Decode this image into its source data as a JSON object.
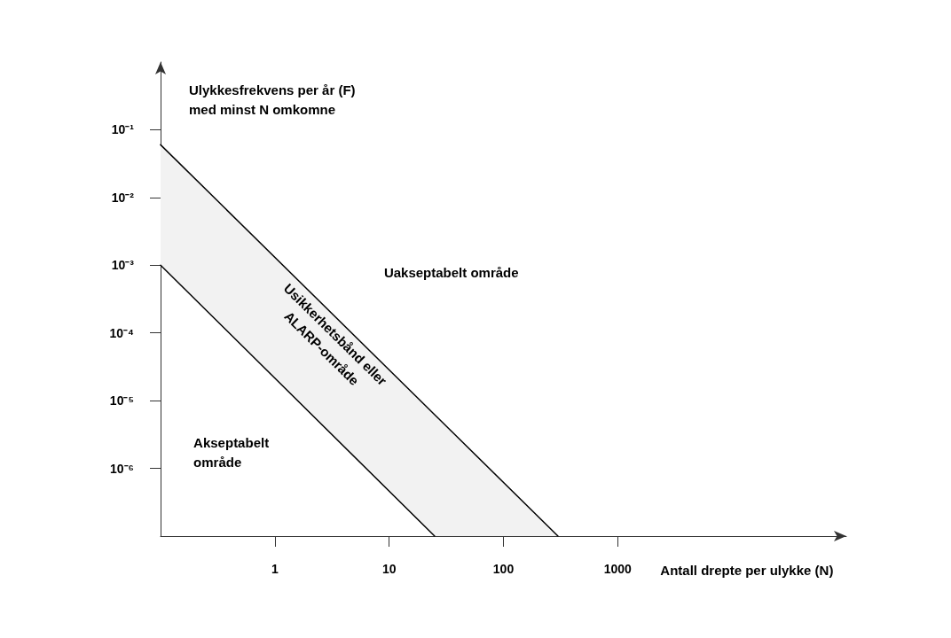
{
  "chart_data": {
    "type": "line",
    "ylabel": "Ulykkesfrekvens per år (F)\nmed minst N omkomne",
    "xlabel": "Antall drepte per ulykke (N)",
    "series": [
      {
        "color": "#000000",
        "x": [
          0.1,
          300
        ],
        "values": [
          0.06,
          1e-07
        ]
      },
      {
        "color": "#000000",
        "x": [
          0.1,
          25
        ],
        "values": [
          0.001,
          1e-07
        ]
      }
    ],
    "log": "xy",
    "xlim": [
      0.1,
      100000
    ],
    "ylim": [
      1e-07,
      1
    ],
    "xticks": [
      1,
      10,
      100,
      1000
    ],
    "yticks": [
      {
        "value": 0.1,
        "label": "10⁻¹"
      },
      {
        "value": 0.01,
        "label": "10⁻²"
      },
      {
        "value": 0.001,
        "label": "10⁻³"
      },
      {
        "value": 0.0001,
        "label": "10⁻⁴"
      },
      {
        "value": 1e-05,
        "label": "10⁻⁵"
      },
      {
        "value": 1e-06,
        "label": "10⁻⁶"
      }
    ],
    "grid": false,
    "annotations": [
      "Uakseptabelt område",
      "Akseptabelt\nområde",
      "Usikkerhetsbånd eller\nALARP-område"
    ]
  }
}
